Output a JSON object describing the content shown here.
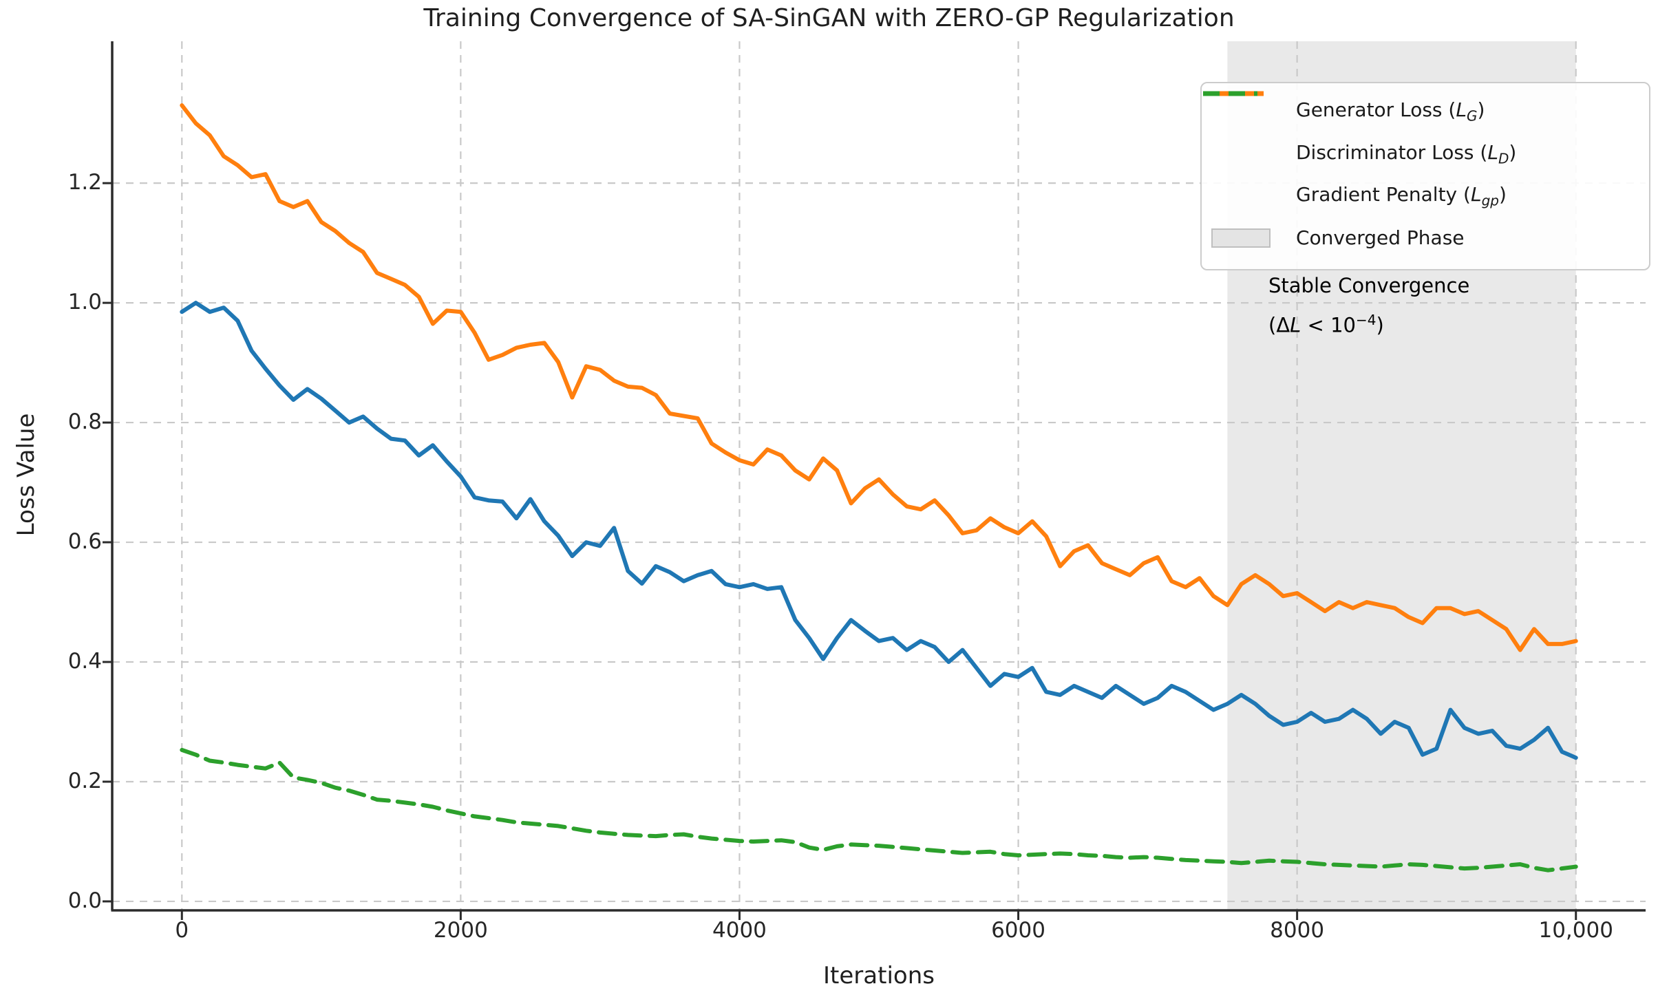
{
  "chart_data": {
    "type": "line",
    "title": "Training Convergence of SA-SinGAN with ZERO-GP Regularization",
    "xlabel": "Iterations",
    "ylabel": "Loss Value",
    "xlim": [
      -500,
      10500
    ],
    "ylim": [
      -0.015,
      1.437
    ],
    "grid": true,
    "grid_color": "#c9c9c9",
    "spine_color": "#2b2b2b",
    "legend_position": "upper right",
    "xticks": {
      "values": [
        0,
        2000,
        4000,
        6000,
        8000,
        10000
      ],
      "labels": [
        "0",
        "2000",
        "4000",
        "6000",
        "8000",
        "10,000"
      ]
    },
    "yticks": {
      "values": [
        0.0,
        0.2,
        0.4,
        0.6,
        0.8,
        1.0,
        1.2
      ],
      "labels": [
        "0.0",
        "0.2",
        "0.4",
        "0.6",
        "0.8",
        "1.0",
        "1.2"
      ]
    },
    "x_start": 0,
    "x_step": 100,
    "series": [
      {
        "name": "Generator Loss (L_G)",
        "color": "#1f77b4",
        "style": "solid",
        "values": [
          0.985,
          1.0,
          0.985,
          0.992,
          0.97,
          0.92,
          0.89,
          0.862,
          0.838,
          0.856,
          0.84,
          0.82,
          0.8,
          0.81,
          0.79,
          0.773,
          0.77,
          0.745,
          0.762,
          0.735,
          0.71,
          0.675,
          0.67,
          0.668,
          0.64,
          0.672,
          0.635,
          0.611,
          0.577,
          0.6,
          0.594,
          0.624,
          0.552,
          0.531,
          0.56,
          0.55,
          0.535,
          0.545,
          0.552,
          0.53,
          0.525,
          0.53,
          0.522,
          0.525,
          0.47,
          0.44,
          0.405,
          0.44,
          0.47,
          0.452,
          0.435,
          0.44,
          0.42,
          0.435,
          0.425,
          0.4,
          0.42,
          0.39,
          0.36,
          0.38,
          0.375,
          0.39,
          0.35,
          0.345,
          0.36,
          0.35,
          0.34,
          0.36,
          0.345,
          0.33,
          0.34,
          0.36,
          0.35,
          0.335,
          0.32,
          0.33,
          0.345,
          0.33,
          0.31,
          0.295,
          0.3,
          0.315,
          0.3,
          0.305,
          0.32,
          0.305,
          0.28,
          0.3,
          0.29,
          0.245,
          0.255,
          0.32,
          0.29,
          0.28,
          0.285,
          0.26,
          0.255,
          0.27,
          0.29,
          0.25,
          0.24
        ]
      },
      {
        "name": "Discriminator Loss (L_D)",
        "color": "#ff7f0e",
        "style": "solid",
        "values": [
          1.33,
          1.3,
          1.28,
          1.245,
          1.23,
          1.21,
          1.215,
          1.17,
          1.16,
          1.17,
          1.135,
          1.12,
          1.1,
          1.085,
          1.05,
          1.04,
          1.03,
          1.01,
          0.965,
          0.987,
          0.985,
          0.95,
          0.905,
          0.913,
          0.925,
          0.93,
          0.933,
          0.901,
          0.842,
          0.894,
          0.888,
          0.87,
          0.86,
          0.858,
          0.846,
          0.815,
          0.811,
          0.807,
          0.765,
          0.75,
          0.737,
          0.73,
          0.755,
          0.745,
          0.72,
          0.705,
          0.74,
          0.72,
          0.665,
          0.69,
          0.705,
          0.68,
          0.66,
          0.655,
          0.67,
          0.645,
          0.615,
          0.62,
          0.64,
          0.625,
          0.615,
          0.635,
          0.61,
          0.56,
          0.585,
          0.595,
          0.565,
          0.555,
          0.545,
          0.565,
          0.575,
          0.535,
          0.525,
          0.54,
          0.51,
          0.495,
          0.53,
          0.545,
          0.53,
          0.51,
          0.515,
          0.5,
          0.485,
          0.5,
          0.49,
          0.5,
          0.495,
          0.49,
          0.475,
          0.465,
          0.49,
          0.49,
          0.48,
          0.485,
          0.47,
          0.455,
          0.42,
          0.455,
          0.43,
          0.43,
          0.435
        ]
      },
      {
        "name": "Gradient Penalty (L_gp)",
        "color": "#2ca02c",
        "style": "dashed",
        "values": [
          0.253,
          0.245,
          0.235,
          0.232,
          0.228,
          0.225,
          0.222,
          0.232,
          0.207,
          0.203,
          0.198,
          0.19,
          0.185,
          0.178,
          0.17,
          0.168,
          0.165,
          0.162,
          0.158,
          0.152,
          0.147,
          0.142,
          0.139,
          0.136,
          0.132,
          0.13,
          0.128,
          0.126,
          0.122,
          0.118,
          0.115,
          0.113,
          0.111,
          0.11,
          0.109,
          0.111,
          0.112,
          0.108,
          0.105,
          0.103,
          0.101,
          0.1,
          0.101,
          0.102,
          0.099,
          0.09,
          0.086,
          0.092,
          0.095,
          0.094,
          0.093,
          0.091,
          0.089,
          0.087,
          0.085,
          0.083,
          0.081,
          0.082,
          0.083,
          0.079,
          0.077,
          0.078,
          0.079,
          0.08,
          0.079,
          0.077,
          0.076,
          0.074,
          0.073,
          0.074,
          0.073,
          0.071,
          0.069,
          0.068,
          0.067,
          0.066,
          0.064,
          0.066,
          0.068,
          0.067,
          0.066,
          0.064,
          0.062,
          0.061,
          0.06,
          0.059,
          0.058,
          0.06,
          0.062,
          0.061,
          0.059,
          0.057,
          0.055,
          0.056,
          0.058,
          0.06,
          0.062,
          0.056,
          0.052,
          0.055,
          0.058
        ]
      }
    ],
    "converged_region": {
      "x_start": 7500,
      "x_end": 10000,
      "color": "#e9e9e9",
      "label": "Converged Phase"
    }
  },
  "legend": {
    "entries": [
      {
        "swatch": "line",
        "color": "#1f77b4",
        "pre": "Generator Loss (",
        "var": "L",
        "sub": "G",
        "post": ")",
        "text": "Generator Loss (L_G)"
      },
      {
        "swatch": "line",
        "color": "#ff7f0e",
        "pre": "Discriminator Loss (",
        "var": "L",
        "sub": "D",
        "post": ")",
        "text": "Discriminator Loss (L_D)"
      },
      {
        "swatch": "dashed",
        "color": "#2ca02c",
        "pre": "Gradient Penalty (",
        "var": "L",
        "sub": "gp",
        "post": ")",
        "text": "Gradient Penalty (L_gp)"
      },
      {
        "swatch": "patch",
        "color": "#e4e4e4",
        "border": "#bfbfbf",
        "pre": "Converged Phase",
        "var": "",
        "sub": "",
        "post": "",
        "text": "Converged Phase"
      }
    ]
  },
  "annotation": {
    "line1": "Stable Convergence",
    "line2_text": "(ΔL < 10⁻⁴)",
    "line2_parts": {
      "open": "(Δ",
      "var": "L",
      "mid": " < 10",
      "sup": "−4",
      "close": ")"
    }
  }
}
